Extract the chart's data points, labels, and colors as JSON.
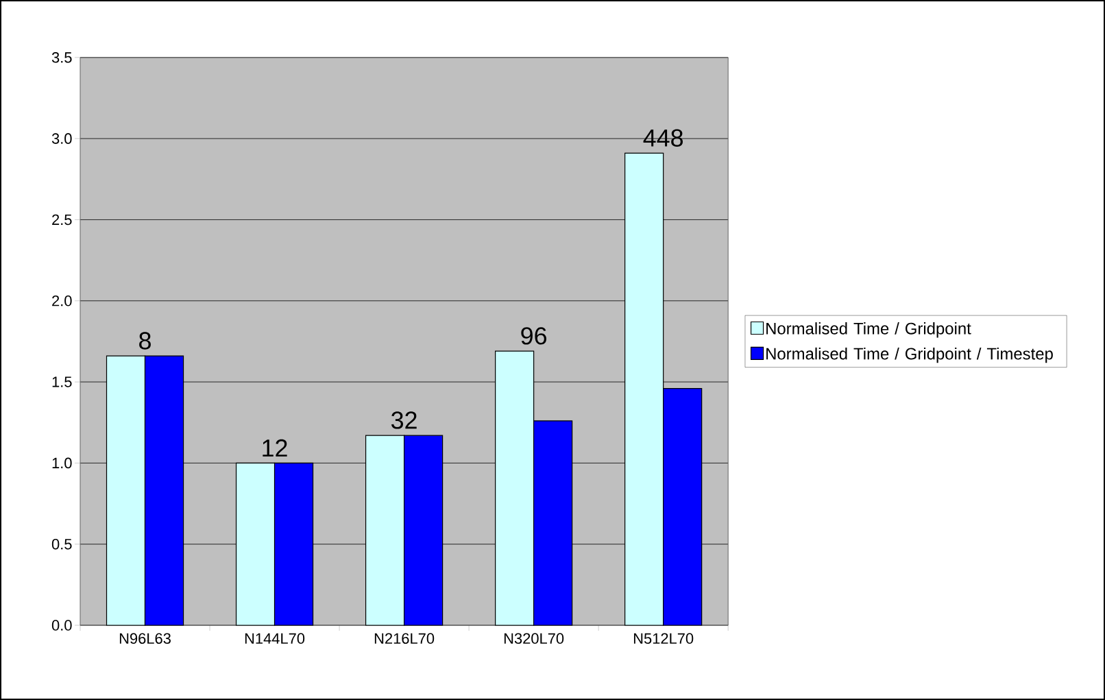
{
  "chart_data": {
    "type": "bar",
    "categories": [
      "N96L63",
      "N144L70",
      "N216L70",
      "N320L70",
      "N512L70"
    ],
    "series": [
      {
        "name": "Normalised Time / Gridpoint",
        "color": "#ccffff",
        "values": [
          1.66,
          1.0,
          1.17,
          1.69,
          2.91
        ]
      },
      {
        "name": "Normalised Time / Gridpoint / Timestep",
        "color": "#0000ff",
        "values": [
          1.66,
          1.0,
          1.17,
          1.26,
          1.46
        ]
      }
    ],
    "ylim": [
      0,
      3.5
    ],
    "yticks": [
      {
        "value": 0,
        "label": "0.0"
      },
      {
        "value": 0.5,
        "label": "0.5"
      },
      {
        "value": 1,
        "label": "1.0"
      },
      {
        "value": 1.5,
        "label": "1.5"
      },
      {
        "value": 2,
        "label": "2.0"
      },
      {
        "value": 2.5,
        "label": "2.5"
      },
      {
        "value": 3,
        "label": "3.0"
      },
      {
        "value": 3.5,
        "label": "3.5"
      }
    ],
    "grid": "y",
    "legend": "right",
    "annotations": [
      {
        "text": "8",
        "x": "N96L63",
        "y": 1.66
      },
      {
        "text": "12",
        "x": "N144L70",
        "y": 1.0
      },
      {
        "text": "32",
        "x": "N216L70",
        "y": 1.17
      },
      {
        "text": "96",
        "x": "N320L70",
        "y": 1.69
      },
      {
        "text": "448",
        "x": "N512L70",
        "y": 2.91
      }
    ]
  }
}
